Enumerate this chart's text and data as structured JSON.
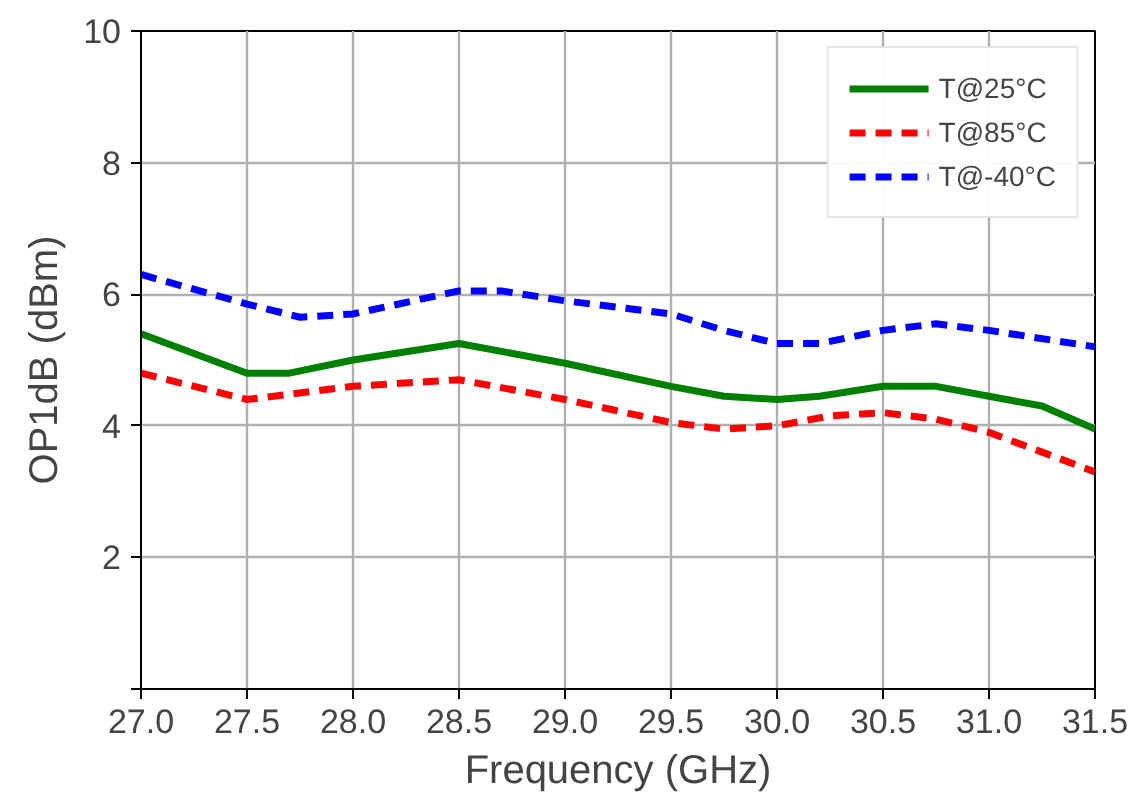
{
  "chart_data": {
    "type": "line",
    "xlabel": "Frequency (GHz)",
    "ylabel": "OP1dB (dBm)",
    "xlim": [
      27.0,
      31.5
    ],
    "ylim": [
      0,
      10
    ],
    "xticks": [
      {
        "value": 27.0,
        "label": "27.0"
      },
      {
        "value": 27.5,
        "label": "27.5"
      },
      {
        "value": 28.0,
        "label": "28.0"
      },
      {
        "value": 28.5,
        "label": "28.5"
      },
      {
        "value": 29.0,
        "label": "29.0"
      },
      {
        "value": 29.5,
        "label": "29.5"
      },
      {
        "value": 30.0,
        "label": "30.0"
      },
      {
        "value": 30.5,
        "label": "30.5"
      },
      {
        "value": 31.0,
        "label": "31.0"
      },
      {
        "value": 31.5,
        "label": "31.5"
      }
    ],
    "yticks": [
      {
        "value": 0,
        "label": null
      },
      2,
      4,
      6,
      8,
      10
    ],
    "grid": true,
    "legend": "top right",
    "series": [
      {
        "name": "T@25°C",
        "color": "#008000",
        "line_style": "solid",
        "x": [
          27.0,
          27.25,
          27.5,
          27.7,
          28.0,
          28.5,
          29.0,
          29.5,
          29.75,
          30.0,
          30.2,
          30.5,
          30.75,
          31.0,
          31.25,
          31.5
        ],
        "values": [
          5.4,
          5.1,
          4.8,
          4.8,
          5.0,
          5.25,
          4.95,
          4.6,
          4.45,
          4.4,
          4.45,
          4.6,
          4.6,
          4.45,
          4.3,
          3.95
        ]
      },
      {
        "name": "T@85°C",
        "color": "#ff0000",
        "line_style": "dashed",
        "x": [
          27.0,
          27.5,
          28.0,
          28.5,
          29.0,
          29.5,
          29.75,
          30.0,
          30.25,
          30.5,
          30.75,
          31.0,
          31.25,
          31.5
        ],
        "values": [
          4.8,
          4.4,
          4.6,
          4.7,
          4.4,
          4.05,
          3.95,
          4.0,
          4.15,
          4.2,
          4.1,
          3.9,
          3.6,
          3.3
        ]
      },
      {
        "name": "T@-40°C",
        "color": "#0000ff",
        "line_style": "dashed",
        "x": [
          27.0,
          27.5,
          27.75,
          28.0,
          28.5,
          28.7,
          29.0,
          29.5,
          29.75,
          30.0,
          30.2,
          30.5,
          30.75,
          31.0,
          31.5
        ],
        "values": [
          6.3,
          5.85,
          5.65,
          5.7,
          6.05,
          6.05,
          5.9,
          5.7,
          5.45,
          5.25,
          5.25,
          5.45,
          5.55,
          5.45,
          5.2
        ]
      }
    ]
  }
}
